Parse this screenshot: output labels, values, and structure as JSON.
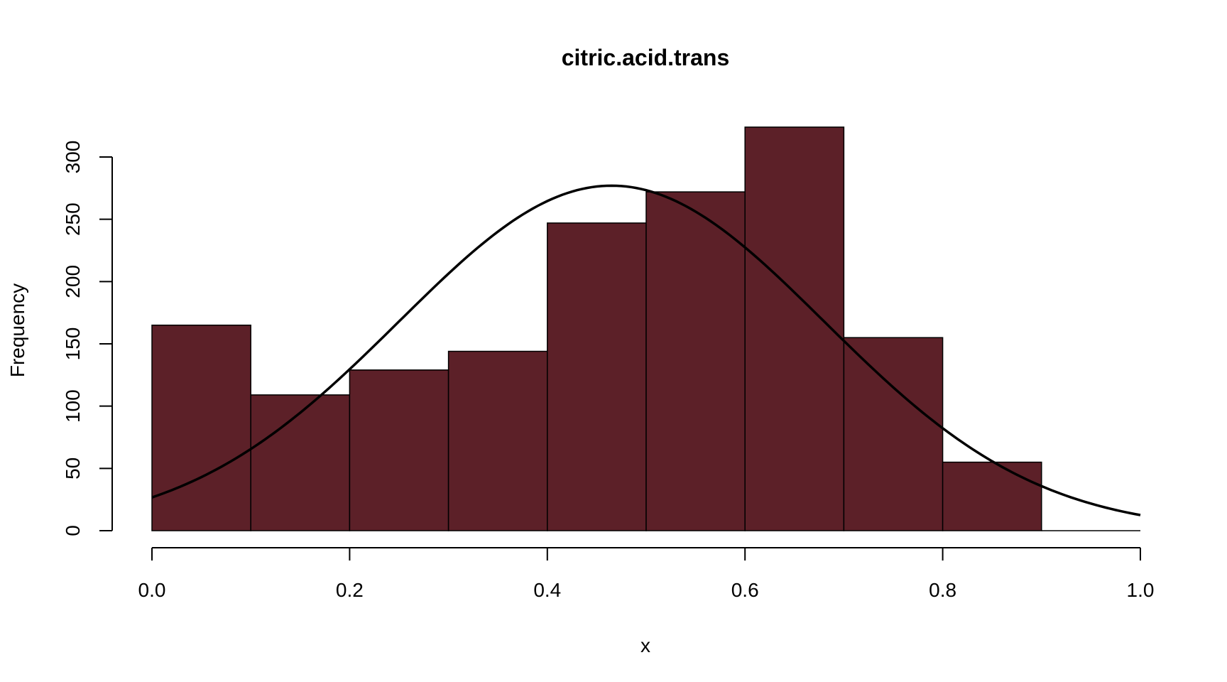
{
  "chart_data": {
    "type": "bar",
    "title": "citric.acid.trans",
    "xlabel": "x",
    "ylabel": "Frequency",
    "bin_edges": [
      0.0,
      0.1,
      0.2,
      0.3,
      0.4,
      0.5,
      0.6,
      0.7,
      0.8,
      0.9,
      1.0
    ],
    "values": [
      165,
      109,
      129,
      144,
      247,
      272,
      324,
      155,
      55,
      0
    ],
    "xlim": [
      0.0,
      1.0
    ],
    "ylim": [
      0,
      324
    ],
    "x_ticks": [
      0.0,
      0.2,
      0.4,
      0.6,
      0.8,
      1.0
    ],
    "x_tick_labels": [
      "0.0",
      "0.2",
      "0.4",
      "0.6",
      "0.8",
      "1.0"
    ],
    "y_ticks": [
      0,
      50,
      100,
      150,
      200,
      250,
      300
    ],
    "y_tick_labels": [
      "0",
      "50",
      "100",
      "150",
      "200",
      "250",
      "300"
    ],
    "bar_color": "#5c2028",
    "overlay": {
      "type": "normal_density_curve",
      "mean": 0.465,
      "sd": 0.215,
      "peak": 277
    },
    "grid": false
  }
}
